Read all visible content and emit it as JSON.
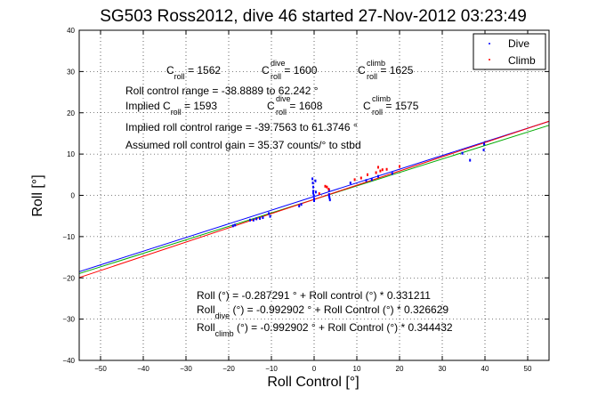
{
  "chart_data": {
    "type": "scatter",
    "title": "SG503 Ross2012, dive 46 started 27-Nov-2012 03:23:49",
    "xlabel": "Roll Control [°]",
    "ylabel": "Roll [°]",
    "xlim": [
      -55,
      55
    ],
    "ylim": [
      -40,
      40
    ],
    "xticks": [
      -50,
      -40,
      -30,
      -20,
      -10,
      0,
      10,
      20,
      30,
      40,
      50
    ],
    "yticks": [
      -40,
      -30,
      -20,
      -10,
      0,
      10,
      20,
      30,
      40
    ],
    "grid": true,
    "legend_position": "top-right",
    "legend": [
      {
        "label": "Dive",
        "color": "#0000ff"
      },
      {
        "label": "Climb",
        "color": "#ff0000"
      }
    ],
    "series": [
      {
        "name": "Dive",
        "color": "#0000ff",
        "points": [
          [
            -19,
            -7.4
          ],
          [
            -18.5,
            -7.2
          ],
          [
            -15,
            -6.0
          ],
          [
            -14.2,
            -6.0
          ],
          [
            -13.5,
            -5.7
          ],
          [
            -12.7,
            -5.6
          ],
          [
            -12.0,
            -5.4
          ],
          [
            -10.6,
            -4.4
          ],
          [
            -10.3,
            -5.1
          ],
          [
            -3.5,
            -2.6
          ],
          [
            -3.0,
            -2.2
          ],
          [
            -0.4,
            4.0
          ],
          [
            -0.3,
            3.0
          ],
          [
            -0.2,
            2.0
          ],
          [
            -0.2,
            1.0
          ],
          [
            -0.1,
            0.0
          ],
          [
            0.0,
            -0.8
          ],
          [
            0.0,
            -1.3
          ],
          [
            -0.2,
            0.6
          ],
          [
            0.3,
            3.5
          ],
          [
            0.4,
            0.8
          ],
          [
            3.5,
            1.3
          ],
          [
            3.5,
            0.2
          ],
          [
            3.6,
            -0.6
          ],
          [
            3.7,
            -1.1
          ],
          [
            3.5,
            -0.2
          ],
          [
            8.5,
            3.0
          ],
          [
            12.2,
            3.6
          ],
          [
            13.5,
            3.8
          ],
          [
            15.0,
            4.6
          ],
          [
            18.3,
            5.3
          ],
          [
            34.7,
            10.2
          ],
          [
            39.7,
            11.0
          ],
          [
            39.8,
            12.4
          ],
          [
            36.5,
            8.5
          ]
        ]
      },
      {
        "name": "Climb",
        "color": "#ff0000",
        "points": [
          [
            1.2,
            0.4
          ],
          [
            2.6,
            2.2
          ],
          [
            3.0,
            2.0
          ],
          [
            3.4,
            1.5
          ],
          [
            9.5,
            3.8
          ],
          [
            11.0,
            4.2
          ],
          [
            12.5,
            5.0
          ],
          [
            14.5,
            5.5
          ],
          [
            15.5,
            5.9
          ],
          [
            16.0,
            6.2
          ],
          [
            17.0,
            6.3
          ],
          [
            15.0,
            6.8
          ],
          [
            20.0,
            7.0
          ]
        ]
      }
    ],
    "fit_lines": [
      {
        "color": "#0000ff",
        "intercept": -0.287291,
        "slope": 0.331211
      },
      {
        "color": "#00aa00",
        "intercept": -0.992902,
        "slope": 0.326629
      },
      {
        "color": "#ff0000",
        "intercept": -0.992902,
        "slope": 0.344432
      }
    ],
    "annotations": {
      "c_roll_line": [
        {
          "main": "C",
          "sub": "roll",
          "sup": "",
          "value": " = 1562"
        },
        {
          "main": "C",
          "sub": "roll",
          "sup": "dive",
          "value": " = 1600"
        },
        {
          "main": "C",
          "sub": "roll",
          "sup": "climb",
          "value": " = 1625"
        }
      ],
      "roll_control_range": "Roll control range = -38.8889 to 62.242 °",
      "implied_c_roll_line": [
        {
          "main": "Implied C",
          "sub": "roll",
          "sup": "",
          "value": " = 1593"
        },
        {
          "main": "C",
          "sub": "roll",
          "sup": "dive",
          "value": " = 1608"
        },
        {
          "main": "C",
          "sub": "roll",
          "sup": "climb",
          "value": " = 1575"
        }
      ],
      "implied_range": "Implied roll control range = -39.7563 to 61.3746 °",
      "assumed_gain": "Assumed roll control gain = 35.37 counts/° to stbd",
      "fit_roll": "Roll (°) = -0.287291 ° + Roll control (°) * 0.331211",
      "fit_dive_head": "Roll",
      "fit_dive_sub": "dive",
      "fit_dive_rest": " (°) = -0.992902 ° + Roll Control (°) * 0.326629",
      "fit_climb_head": "Roll",
      "fit_climb_sub": "climb",
      "fit_climb_rest": " (°) = -0.992902 ° + Roll Control (°) * 0.344432"
    }
  }
}
